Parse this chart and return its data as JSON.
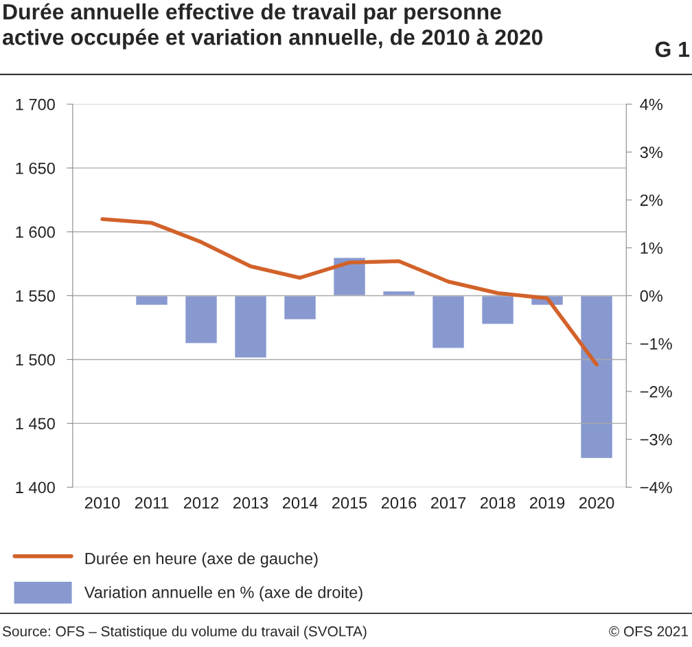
{
  "chart_data": {
    "type": "line",
    "title": "Durée annuelle effective de travail par personne\nactive occupée et variation annuelle, de 2010 à 2020",
    "categories": [
      "2010",
      "2011",
      "2012",
      "2013",
      "2014",
      "2015",
      "2016",
      "2017",
      "2018",
      "2019",
      "2020"
    ],
    "series": [
      {
        "name": "Durée en heure (axe de gauche)",
        "color": "#d2622a",
        "values": [
          1610,
          1607,
          1592,
          1573,
          1564,
          1576,
          1577,
          1561,
          1552,
          1548,
          1496
        ]
      },
      {
        "name": "Variation annuelle en % (axe de droite)",
        "type": "bar",
        "axis": "y2",
        "color": "#8899d0",
        "values": [
          null,
          -0.2,
          -1.0,
          -1.3,
          -0.5,
          0.8,
          0.1,
          -1.1,
          -0.6,
          -0.2,
          -3.4
        ]
      }
    ],
    "ylim": [
      1400,
      1700
    ],
    "yticks": [
      {
        "value": 1400,
        "label": "1 400"
      },
      {
        "value": 1450,
        "label": "1 450"
      },
      {
        "value": 1500,
        "label": "1 500"
      },
      {
        "value": 1550,
        "label": "1 550"
      },
      {
        "value": 1600,
        "label": "1 600"
      },
      {
        "value": 1650,
        "label": "1 650"
      },
      {
        "value": 1700,
        "label": "1 700"
      }
    ],
    "y2lim": [
      -4,
      4
    ],
    "y2ticks": [
      {
        "value": -4,
        "label": "−4%"
      },
      {
        "value": -3,
        "label": "−3%"
      },
      {
        "value": -2,
        "label": "−2%"
      },
      {
        "value": -1,
        "label": "−1%"
      },
      {
        "value": 0,
        "label": "0%"
      },
      {
        "value": 1,
        "label": "1%"
      },
      {
        "value": 2,
        "label": "2%"
      },
      {
        "value": 3,
        "label": "3%"
      },
      {
        "value": 4,
        "label": "4%"
      }
    ],
    "grid": "y",
    "legend": "bottom",
    "marker": "none",
    "line_style": "solid",
    "annotations": [
      "G 1",
      "Source: OFS – Statistique du volume du travail (SVOLTA)",
      "© OFS 2021"
    ]
  }
}
